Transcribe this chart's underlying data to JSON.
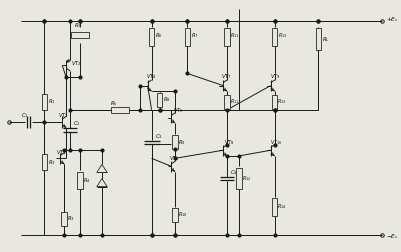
{
  "background": "#e8e8e0",
  "line_color": "#1a1a1a",
  "text_color": "#111111",
  "figsize": [
    4.02,
    2.52
  ],
  "dpi": 100,
  "xlim": [
    0,
    100
  ],
  "ylim": [
    0,
    62
  ]
}
